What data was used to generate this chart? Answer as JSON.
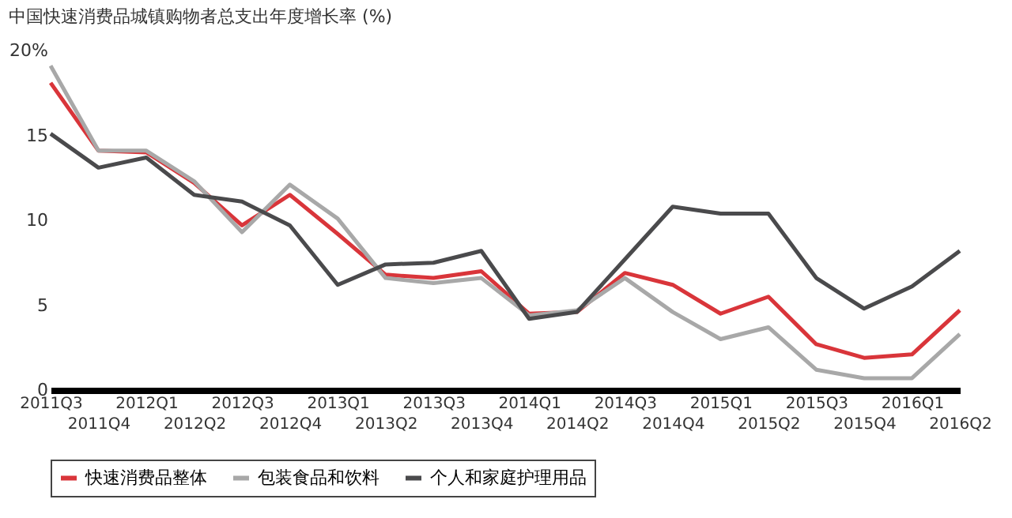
{
  "chart_data": {
    "type": "line",
    "title": "中国快速消费品城镇购物者总支出年度增长率 (%)",
    "categories": [
      "2011Q3",
      "2011Q4",
      "2012Q1",
      "2012Q2",
      "2012Q3",
      "2012Q4",
      "2013Q1",
      "2013Q2",
      "2013Q3",
      "2013Q4",
      "2014Q1",
      "2014Q2",
      "2014Q3",
      "2014Q4",
      "2015Q1",
      "2015Q2",
      "2015Q3",
      "2015Q4",
      "2016Q1",
      "2016Q2"
    ],
    "series": [
      {
        "name": "快速消费品整体",
        "color": "#d9353a",
        "values": [
          18.1,
          14.1,
          14.0,
          12.2,
          9.7,
          11.5,
          9.2,
          6.8,
          6.6,
          7.0,
          4.5,
          4.6,
          6.9,
          6.2,
          4.5,
          5.5,
          2.7,
          1.9,
          2.1,
          4.7
        ]
      },
      {
        "name": "包装食品和饮料",
        "color": "#a8a8a8",
        "values": [
          19.1,
          14.1,
          14.1,
          12.3,
          9.3,
          12.1,
          10.1,
          6.6,
          6.3,
          6.6,
          4.4,
          4.7,
          6.6,
          4.6,
          3.0,
          3.7,
          1.2,
          0.7,
          0.7,
          3.3
        ]
      },
      {
        "name": "个人和家庭护理用品",
        "color": "#4a4a4c",
        "values": [
          15.1,
          13.1,
          13.7,
          11.5,
          11.1,
          9.7,
          6.2,
          7.4,
          7.5,
          8.2,
          4.2,
          4.6,
          7.7,
          10.8,
          10.4,
          10.4,
          6.6,
          4.8,
          6.1,
          8.2
        ]
      }
    ],
    "ylim": [
      0,
      20
    ],
    "yticks": [
      0,
      5,
      10,
      15,
      {
        "value": 20,
        "label": "20%"
      }
    ],
    "grid": false,
    "legend": "bottom",
    "line_style": "solid",
    "marker": "none"
  }
}
